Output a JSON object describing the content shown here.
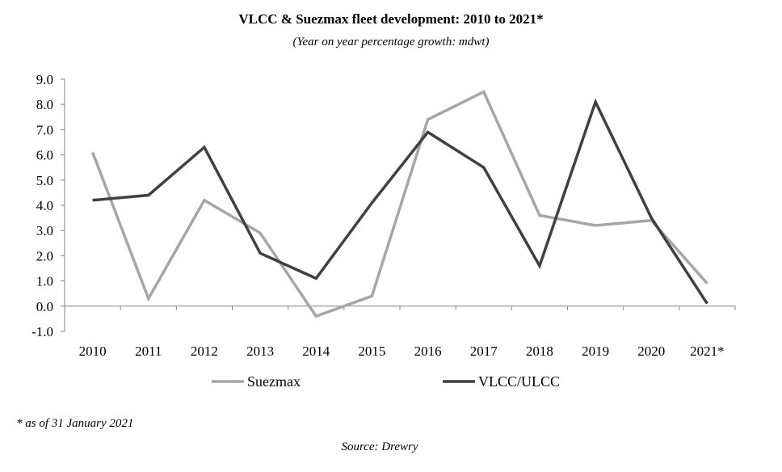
{
  "chart_data": {
    "type": "line",
    "title": "VLCC & Suezmax fleet development: 2010 to 2021*",
    "subtitle": "(Year on year percentage growth: mdwt)",
    "categories": [
      "2010",
      "2011",
      "2012",
      "2013",
      "2014",
      "2015",
      "2016",
      "2017",
      "2018",
      "2019",
      "2020",
      "2021*"
    ],
    "y_ticks": [
      "9.0",
      "8.0",
      "7.0",
      "6.0",
      "5.0",
      "4.0",
      "3.0",
      "2.0",
      "1.0",
      "0.0",
      "-1.0"
    ],
    "ylim": [
      -1,
      9
    ],
    "grid": false,
    "legend_position": "bottom",
    "series": [
      {
        "name": "Suezmax",
        "color": "#a6a6a6",
        "values": [
          6.1,
          0.3,
          4.2,
          2.9,
          -0.4,
          0.4,
          7.4,
          8.5,
          3.6,
          3.2,
          3.4,
          0.9
        ]
      },
      {
        "name": "VLCC/ULCC",
        "color": "#404040",
        "values": [
          4.2,
          4.4,
          6.3,
          2.1,
          1.1,
          4.1,
          6.9,
          5.5,
          1.6,
          8.1,
          3.5,
          0.1
        ]
      }
    ]
  },
  "footnote": "* as of 31 January 2021",
  "source": "Source: Drewry"
}
